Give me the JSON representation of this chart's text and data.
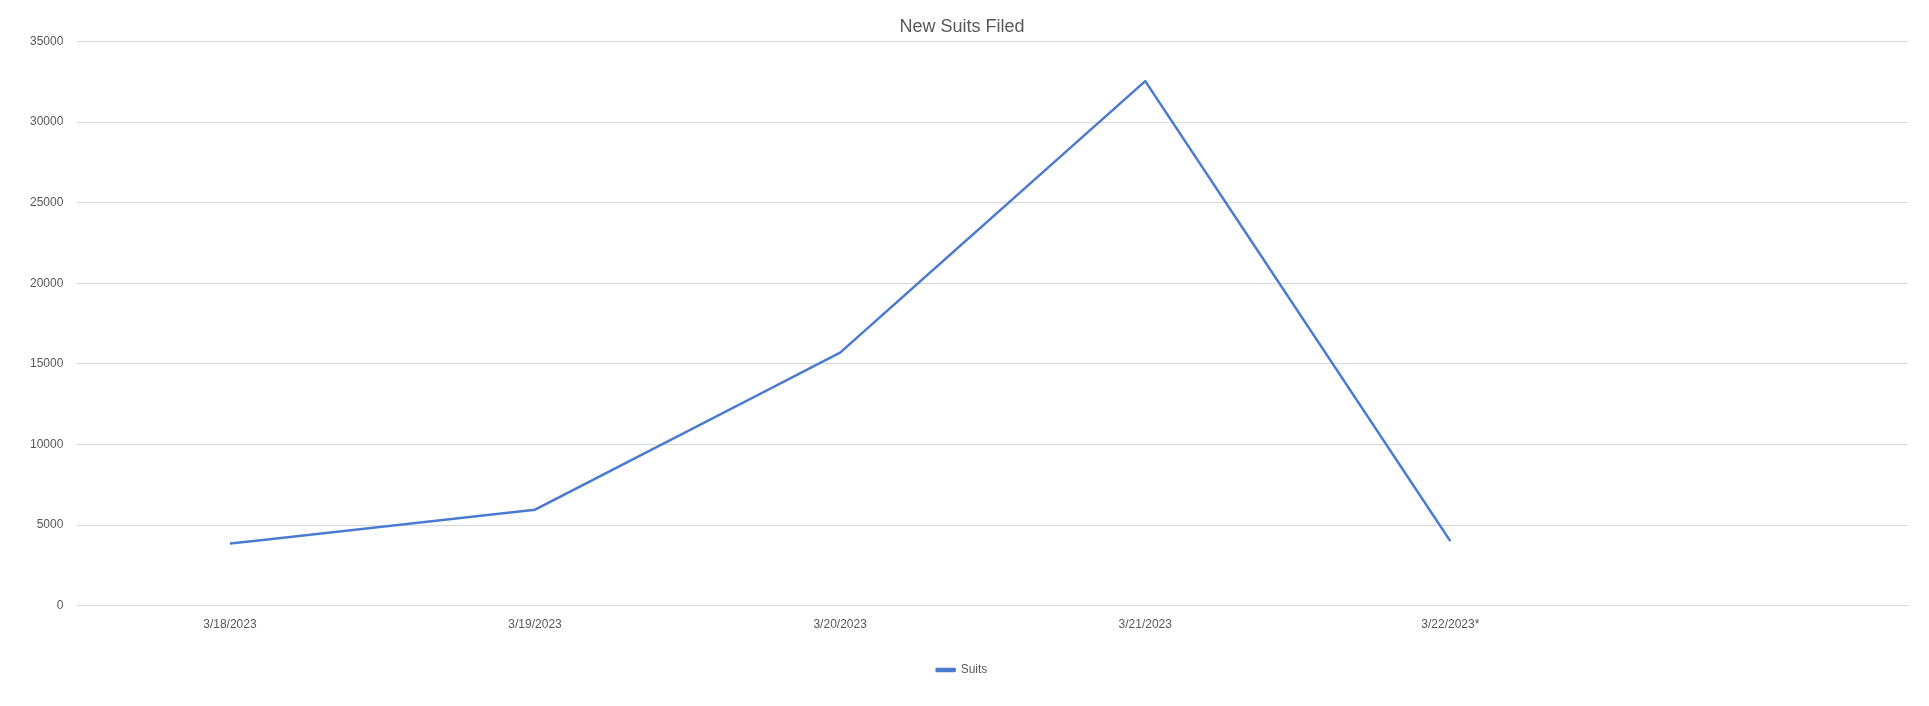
{
  "chart_data": {
    "type": "line",
    "title": "New Suits Filed",
    "categories": [
      "3/18/2023",
      "3/19/2023",
      "3/20/2023",
      "3/21/2023",
      "3/22/2023*",
      null
    ],
    "series": [
      {
        "name": "Suits",
        "color": "#4a7bd0",
        "values": [
          3850,
          5950,
          15700,
          32550,
          4000,
          null
        ]
      }
    ],
    "ylim": [
      0,
      35000
    ],
    "yticks": [
      0,
      5000,
      10000,
      15000,
      20000,
      25000,
      30000,
      35000
    ],
    "grid": "y",
    "legend": "bottom",
    "marker": "none",
    "line_style": "solid"
  }
}
